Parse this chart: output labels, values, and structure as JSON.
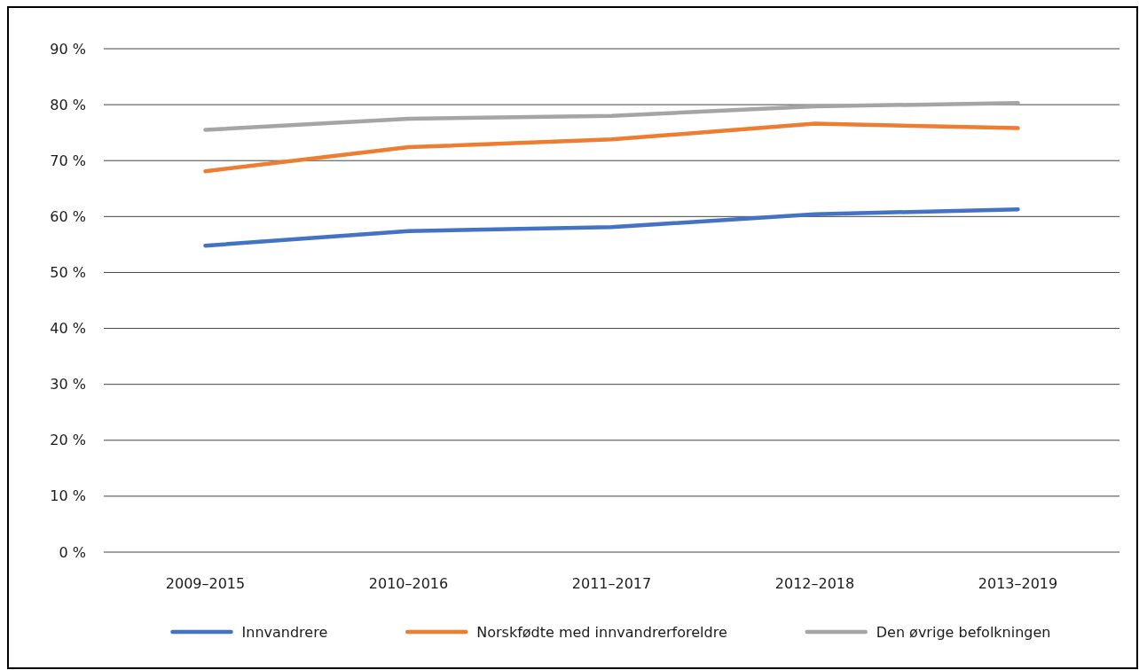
{
  "chart_data": {
    "type": "line",
    "categories": [
      "2009–2015",
      "2010–2016",
      "2011–2017",
      "2012–2018",
      "2013–2019"
    ],
    "series": [
      {
        "name": "Innvandrere",
        "color": "#4472c4",
        "values": [
          54.8,
          57.4,
          58.1,
          60.4,
          61.3
        ]
      },
      {
        "name": "Norskfødte med innvandrerforeldre",
        "color": "#ed7d31",
        "values": [
          68.1,
          72.4,
          73.8,
          76.6,
          75.8
        ]
      },
      {
        "name": "Den øvrige befolkningen",
        "color": "#a5a5a5",
        "values": [
          75.5,
          77.5,
          78.0,
          79.7,
          80.3
        ]
      }
    ],
    "ylim": [
      0,
      90
    ],
    "yticks": [
      {
        "value": 0,
        "label": "0 %"
      },
      {
        "value": 10,
        "label": "10 %"
      },
      {
        "value": 20,
        "label": "20 %"
      },
      {
        "value": 30,
        "label": "30 %"
      },
      {
        "value": 40,
        "label": "40 %"
      },
      {
        "value": 50,
        "label": "50 %"
      },
      {
        "value": 60,
        "label": "60 %"
      },
      {
        "value": 70,
        "label": "70 %"
      },
      {
        "value": 80,
        "label": "80 %"
      },
      {
        "value": 90,
        "label": "90 %"
      }
    ],
    "grid": "y",
    "legend": "bottom",
    "marker": "none",
    "line_style": "solid"
  }
}
